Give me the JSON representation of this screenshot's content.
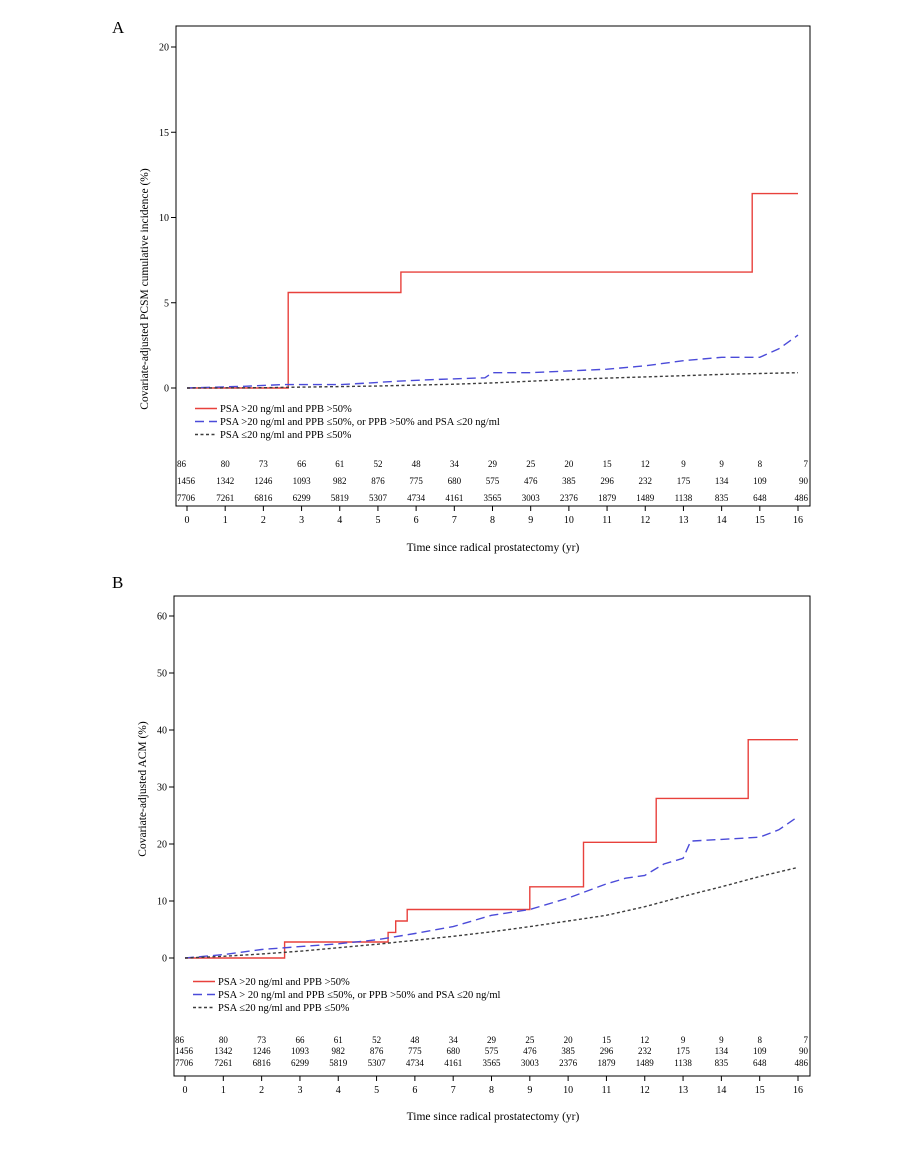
{
  "chart_data": [
    {
      "panel_label": "A",
      "type": "line",
      "ylabel": "Covariate-adjusted PCSM cumulative incidence (%)",
      "xlabel": "Time since radical prostatectomy (yr)",
      "xlim": [
        0,
        16
      ],
      "ylim": [
        0,
        20
      ],
      "xticks": [
        0,
        1,
        2,
        3,
        4,
        5,
        6,
        7,
        8,
        9,
        10,
        11,
        12,
        13,
        14,
        15,
        16
      ],
      "yticks": [
        0,
        5,
        10,
        15,
        20
      ],
      "grid": false,
      "legend_position": "lower-left",
      "series": [
        {
          "name": "PSA >20 ng/ml and PPB >50%",
          "color": "#e8413c",
          "line_style": "solid",
          "x": [
            0,
            2.65,
            2.65,
            5.6,
            5.6,
            14.8,
            14.8,
            16
          ],
          "y": [
            0,
            0,
            5.6,
            5.6,
            6.8,
            6.8,
            11.4,
            11.4
          ]
        },
        {
          "name": "PSA >20 ng/ml and PPB ≤50%, or PPB >50% and PSA ≤20 ng/ml",
          "color": "#4b4bd9",
          "line_style": "dashed",
          "x": [
            0,
            1.5,
            2.5,
            4,
            4.8,
            5.5,
            6.5,
            7.8,
            8,
            9,
            10,
            11,
            12,
            13,
            14,
            15,
            15.5,
            16
          ],
          "y": [
            0,
            0.1,
            0.2,
            0.2,
            0.3,
            0.4,
            0.5,
            0.6,
            0.9,
            0.9,
            1.0,
            1.1,
            1.3,
            1.6,
            1.8,
            1.8,
            2.3,
            3.1
          ]
        },
        {
          "name": "PSA ≤20 ng/ml and PPB ≤50%",
          "color": "#3c3c3c",
          "line_style": "dotted",
          "x": [
            0,
            2,
            3,
            4,
            5,
            6,
            7,
            8,
            9,
            10,
            11,
            12,
            13,
            14,
            15,
            16
          ],
          "y": [
            0,
            0.02,
            0.05,
            0.08,
            0.12,
            0.17,
            0.22,
            0.3,
            0.4,
            0.5,
            0.58,
            0.65,
            0.72,
            0.8,
            0.85,
            0.9
          ]
        }
      ],
      "risk_table": {
        "times": [
          0,
          1,
          2,
          3,
          4,
          5,
          6,
          7,
          8,
          9,
          10,
          11,
          12,
          13,
          14,
          15,
          16
        ],
        "rows": [
          [
            "86",
            "80",
            "73",
            "66",
            "61",
            "52",
            "48",
            "34",
            "29",
            "25",
            "20",
            "15",
            "12",
            "9",
            "9",
            "8",
            "7"
          ],
          [
            "1456",
            "1342",
            "1246",
            "1093",
            "982",
            "876",
            "775",
            "680",
            "575",
            "476",
            "385",
            "296",
            "232",
            "175",
            "134",
            "109",
            "90"
          ],
          [
            "7706",
            "7261",
            "6816",
            "6299",
            "5819",
            "5307",
            "4734",
            "4161",
            "3565",
            "3003",
            "2376",
            "1879",
            "1489",
            "1138",
            "835",
            "648",
            "486"
          ]
        ]
      }
    },
    {
      "panel_label": "B",
      "type": "line",
      "ylabel": "Covariate-adjusted ACM (%)",
      "xlabel": "Time since radical prostatectomy (yr)",
      "xlim": [
        0,
        16
      ],
      "ylim": [
        0,
        60
      ],
      "xticks": [
        0,
        1,
        2,
        3,
        4,
        5,
        6,
        7,
        8,
        9,
        10,
        11,
        12,
        13,
        14,
        15,
        16
      ],
      "yticks": [
        0,
        10,
        20,
        30,
        40,
        50,
        60
      ],
      "grid": false,
      "legend_position": "lower-left",
      "series": [
        {
          "name": "PSA >20 ng/ml and PPB >50%",
          "color": "#e8413c",
          "line_style": "solid",
          "x": [
            0,
            2.6,
            2.6,
            5.3,
            5.3,
            5.5,
            5.5,
            5.8,
            5.8,
            9,
            9,
            10.4,
            10.4,
            12.3,
            12.3,
            14.7,
            14.7,
            16
          ],
          "y": [
            0,
            0,
            2.8,
            2.8,
            4.5,
            4.5,
            6.5,
            6.5,
            8.5,
            8.5,
            12.5,
            12.5,
            20.3,
            20.3,
            28,
            28,
            38.3,
            38.3
          ]
        },
        {
          "name": "PSA > 20 ng/ml and PPB ≤50%, or PPB >50% and PSA ≤20 ng/ml",
          "color": "#4b4bd9",
          "line_style": "dashed",
          "x": [
            0,
            1,
            2,
            3,
            4,
            5,
            6,
            7,
            8,
            9,
            10,
            11,
            11.5,
            12,
            12.5,
            13,
            13.2,
            14,
            15,
            15.5,
            16
          ],
          "y": [
            0,
            0.6,
            1.5,
            2.0,
            2.5,
            3.2,
            4.3,
            5.5,
            7.5,
            8.5,
            10.5,
            13.0,
            14.0,
            14.5,
            16.5,
            17.5,
            20.5,
            20.8,
            21.2,
            22.5,
            24.8
          ]
        },
        {
          "name": "PSA ≤20 ng/ml  and PPB ≤50%",
          "color": "#3c3c3c",
          "line_style": "dotted",
          "x": [
            0,
            1,
            2,
            3,
            4,
            5,
            6,
            7,
            8,
            9,
            10,
            11,
            12,
            13,
            14,
            15,
            16
          ],
          "y": [
            0,
            0.3,
            0.7,
            1.2,
            1.8,
            2.4,
            3.1,
            3.8,
            4.6,
            5.5,
            6.5,
            7.5,
            9.0,
            10.8,
            12.5,
            14.3,
            15.9
          ]
        }
      ],
      "risk_table": {
        "times": [
          0,
          1,
          2,
          3,
          4,
          5,
          6,
          7,
          8,
          9,
          10,
          11,
          12,
          13,
          14,
          15,
          16
        ],
        "rows": [
          [
            "86",
            "80",
            "73",
            "66",
            "61",
            "52",
            "48",
            "34",
            "29",
            "25",
            "20",
            "15",
            "12",
            "9",
            "9",
            "8",
            "7"
          ],
          [
            "1456",
            "1342",
            "1246",
            "1093",
            "982",
            "876",
            "775",
            "680",
            "575",
            "476",
            "385",
            "296",
            "232",
            "175",
            "134",
            "109",
            "90"
          ],
          [
            "7706",
            "7261",
            "6816",
            "6299",
            "5819",
            "5307",
            "4734",
            "4161",
            "3565",
            "3003",
            "2376",
            "1879",
            "1489",
            "1138",
            "835",
            "648",
            "486"
          ]
        ]
      }
    }
  ]
}
